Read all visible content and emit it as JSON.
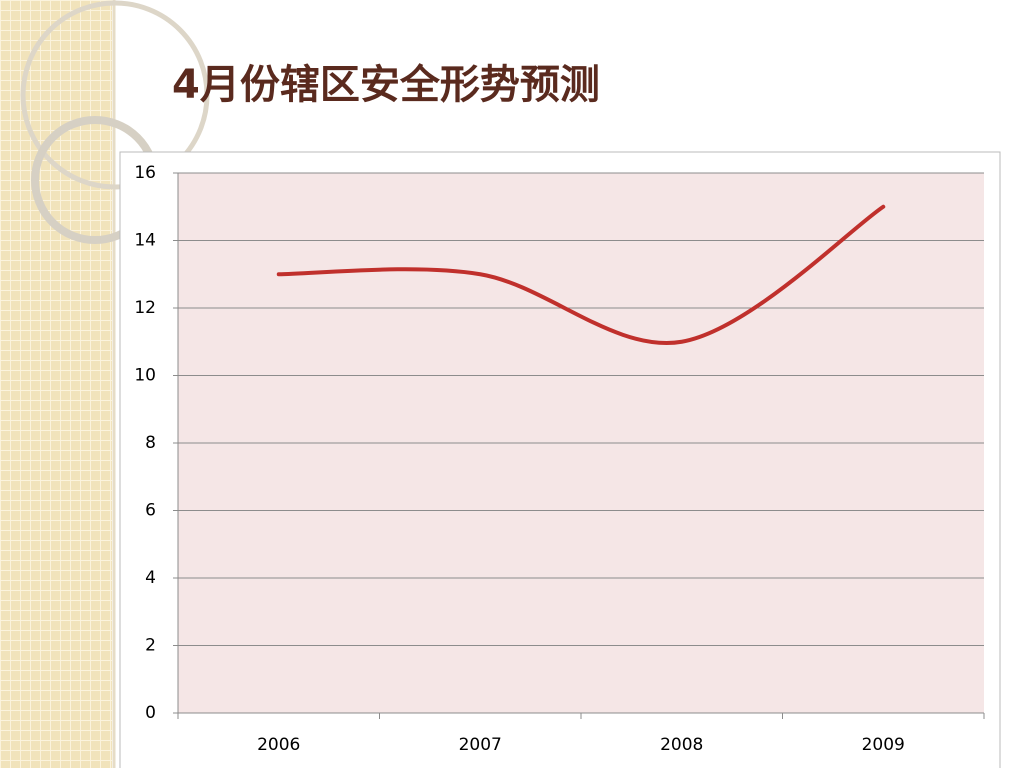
{
  "chart_data": {
    "type": "line",
    "title": "4月份辖区安全形势预测",
    "categories": [
      "2006",
      "2007",
      "2008",
      "2009"
    ],
    "series": [
      {
        "name": null,
        "color": "#c0302c",
        "values": [
          13,
          13,
          11,
          15
        ]
      }
    ],
    "ylim": [
      0,
      16
    ],
    "yticks": [
      0,
      2,
      4,
      6,
      8,
      10,
      12,
      14,
      16
    ],
    "grid": true,
    "smooth": true
  }
}
